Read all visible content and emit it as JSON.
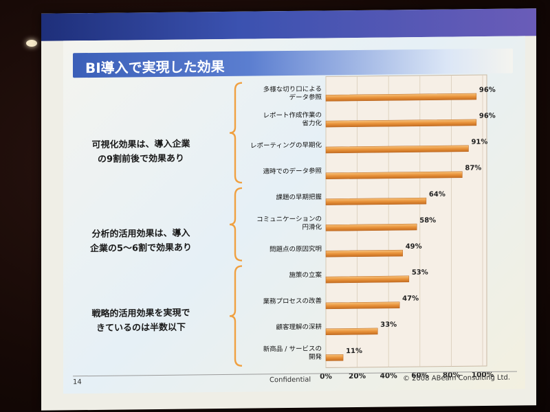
{
  "slide": {
    "title": "BI導入で実現した効果",
    "groups": [
      {
        "text": "可視化効果は、導入企業\nの9割前後で効果あり"
      },
      {
        "text": "分析的活用効果は、導入\n企業の5～6割で効果あり"
      },
      {
        "text": "戦略的活用効果を実現で\nきているのは半数以下"
      }
    ],
    "footer": {
      "page": "14",
      "confidential": "Confidential",
      "copyright": "© 2008 ABeam Consulting Ltd."
    }
  },
  "colors": {
    "title_bar": "#3b5fb8",
    "bar": "#e8923a",
    "brace": "#f0a040"
  },
  "chart_data": {
    "type": "bar",
    "orientation": "horizontal",
    "categories": [
      "多様な切り口による\nデータ参照",
      "レポート作成作業の\n省力化",
      "レポーティングの早期化",
      "適時でのデータ参照",
      "課題の早期把握",
      "コミュニケーションの\n円滑化",
      "問題点の原因究明",
      "施策の立案",
      "業務プロセスの改善",
      "顧客理解の深耕",
      "新商品 / サービスの\n開発"
    ],
    "values": [
      96,
      96,
      91,
      87,
      64,
      58,
      49,
      53,
      47,
      33,
      11
    ],
    "value_labels": [
      "96%",
      "96%",
      "91%",
      "87%",
      "64%",
      "58%",
      "49%",
      "53%",
      "47%",
      "33%",
      "11%"
    ],
    "xticks": [
      "0%",
      "20%",
      "40%",
      "60%",
      "80%",
      "100%"
    ],
    "xlim": [
      0,
      100
    ]
  }
}
